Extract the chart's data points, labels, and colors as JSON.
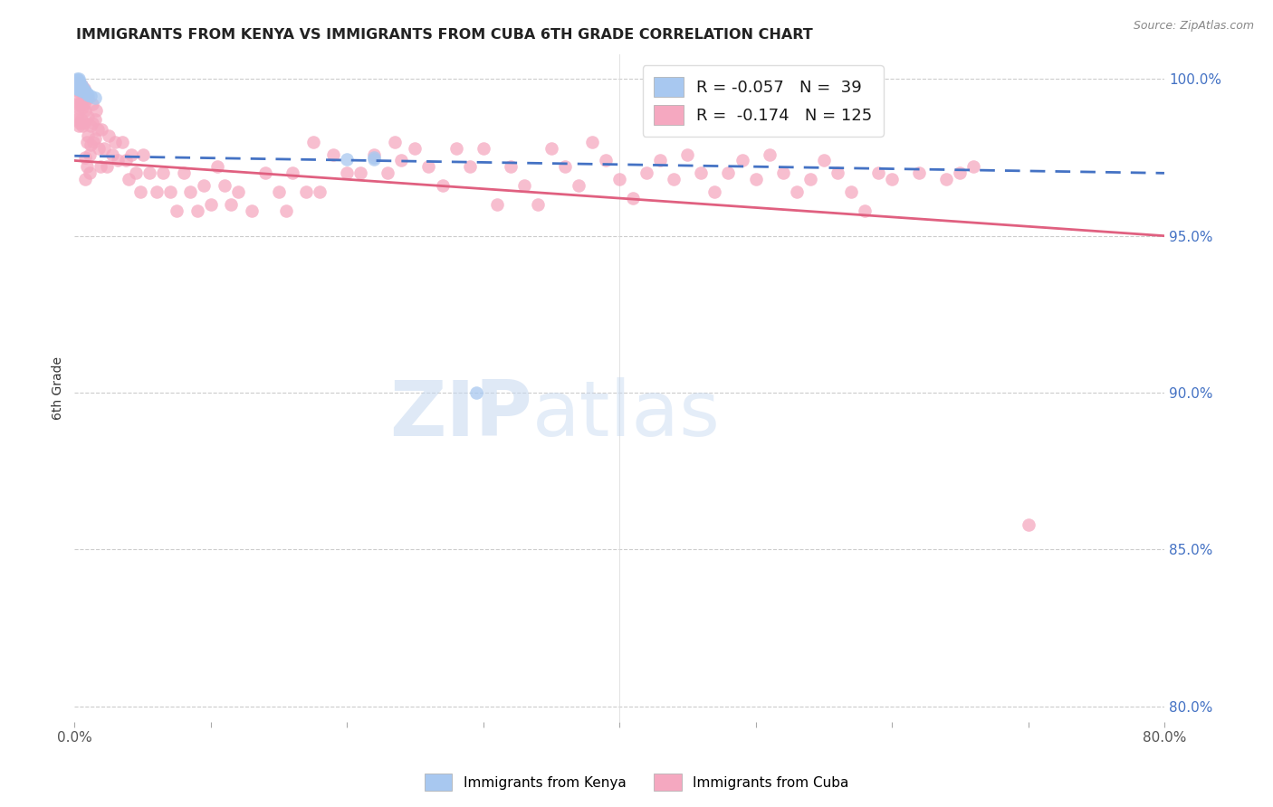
{
  "title": "IMMIGRANTS FROM KENYA VS IMMIGRANTS FROM CUBA 6TH GRADE CORRELATION CHART",
  "source": "Source: ZipAtlas.com",
  "ylabel": "6th Grade",
  "xlim": [
    0.0,
    0.8
  ],
  "ylim": [
    0.795,
    1.008
  ],
  "xticks": [
    0.0,
    0.1,
    0.2,
    0.3,
    0.4,
    0.5,
    0.6,
    0.7,
    0.8
  ],
  "xticklabels": [
    "0.0%",
    "",
    "",
    "",
    "",
    "",
    "",
    "",
    "80.0%"
  ],
  "yticks": [
    0.8,
    0.85,
    0.9,
    0.95,
    1.0
  ],
  "yticklabels": [
    "80.0%",
    "85.0%",
    "90.0%",
    "95.0%",
    "100.0%"
  ],
  "kenya_R": -0.057,
  "kenya_N": 39,
  "cuba_R": -0.174,
  "cuba_N": 125,
  "kenya_color": "#a8c8f0",
  "cuba_color": "#f5a8c0",
  "kenya_trend_color": "#4472c4",
  "cuba_trend_color": "#e06080",
  "watermark_zip": "ZIP",
  "watermark_atlas": "atlas",
  "kenya_x": [
    0.001,
    0.001,
    0.001,
    0.002,
    0.002,
    0.002,
    0.002,
    0.002,
    0.002,
    0.002,
    0.003,
    0.003,
    0.003,
    0.003,
    0.003,
    0.003,
    0.003,
    0.003,
    0.004,
    0.004,
    0.004,
    0.004,
    0.004,
    0.005,
    0.005,
    0.005,
    0.006,
    0.006,
    0.007,
    0.007,
    0.008,
    0.009,
    0.01,
    0.012,
    0.015,
    0.2,
    0.22,
    0.22,
    0.295
  ],
  "kenya_y": [
    0.9995,
    0.999,
    0.9985,
    1.0,
    0.9995,
    0.999,
    0.9985,
    0.998,
    0.9975,
    0.997,
    1.0,
    0.9995,
    0.999,
    0.9985,
    0.998,
    0.9975,
    0.997,
    0.9965,
    0.9985,
    0.998,
    0.9975,
    0.997,
    0.9965,
    0.998,
    0.9975,
    0.997,
    0.9965,
    0.996,
    0.9965,
    0.996,
    0.996,
    0.9955,
    0.995,
    0.9945,
    0.994,
    0.9745,
    0.975,
    0.9745,
    0.9
  ],
  "cuba_x": [
    0.001,
    0.001,
    0.002,
    0.002,
    0.002,
    0.003,
    0.003,
    0.003,
    0.004,
    0.004,
    0.004,
    0.005,
    0.005,
    0.005,
    0.006,
    0.006,
    0.006,
    0.007,
    0.007,
    0.007,
    0.008,
    0.008,
    0.008,
    0.009,
    0.009,
    0.01,
    0.01,
    0.01,
    0.011,
    0.011,
    0.012,
    0.012,
    0.013,
    0.013,
    0.014,
    0.015,
    0.015,
    0.016,
    0.017,
    0.018,
    0.019,
    0.02,
    0.022,
    0.024,
    0.025,
    0.028,
    0.03,
    0.032,
    0.035,
    0.038,
    0.04,
    0.042,
    0.045,
    0.048,
    0.05,
    0.055,
    0.06,
    0.065,
    0.07,
    0.075,
    0.08,
    0.085,
    0.09,
    0.095,
    0.1,
    0.105,
    0.11,
    0.115,
    0.12,
    0.13,
    0.14,
    0.15,
    0.155,
    0.16,
    0.17,
    0.175,
    0.18,
    0.19,
    0.2,
    0.21,
    0.22,
    0.23,
    0.235,
    0.24,
    0.25,
    0.26,
    0.27,
    0.28,
    0.29,
    0.3,
    0.31,
    0.32,
    0.33,
    0.34,
    0.35,
    0.36,
    0.37,
    0.38,
    0.39,
    0.4,
    0.41,
    0.42,
    0.43,
    0.44,
    0.45,
    0.46,
    0.47,
    0.48,
    0.49,
    0.5,
    0.51,
    0.52,
    0.53,
    0.54,
    0.55,
    0.56,
    0.57,
    0.58,
    0.59,
    0.6,
    0.62,
    0.64,
    0.65,
    0.66,
    0.7
  ],
  "cuba_y": [
    0.992,
    0.987,
    0.999,
    0.994,
    0.988,
    0.996,
    0.991,
    0.985,
    0.997,
    0.992,
    0.986,
    0.998,
    0.993,
    0.987,
    0.996,
    0.991,
    0.985,
    0.997,
    0.992,
    0.986,
    0.975,
    0.968,
    0.99,
    0.98,
    0.972,
    0.994,
    0.988,
    0.982,
    0.976,
    0.97,
    0.985,
    0.979,
    0.992,
    0.986,
    0.98,
    0.987,
    0.981,
    0.99,
    0.984,
    0.978,
    0.972,
    0.984,
    0.978,
    0.972,
    0.982,
    0.976,
    0.98,
    0.974,
    0.98,
    0.974,
    0.968,
    0.976,
    0.97,
    0.964,
    0.976,
    0.97,
    0.964,
    0.97,
    0.964,
    0.958,
    0.97,
    0.964,
    0.958,
    0.966,
    0.96,
    0.972,
    0.966,
    0.96,
    0.964,
    0.958,
    0.97,
    0.964,
    0.958,
    0.97,
    0.964,
    0.98,
    0.964,
    0.976,
    0.97,
    0.97,
    0.976,
    0.97,
    0.98,
    0.974,
    0.978,
    0.972,
    0.966,
    0.978,
    0.972,
    0.978,
    0.96,
    0.972,
    0.966,
    0.96,
    0.978,
    0.972,
    0.966,
    0.98,
    0.974,
    0.968,
    0.962,
    0.97,
    0.974,
    0.968,
    0.976,
    0.97,
    0.964,
    0.97,
    0.974,
    0.968,
    0.976,
    0.97,
    0.964,
    0.968,
    0.974,
    0.97,
    0.964,
    0.958,
    0.97,
    0.968,
    0.97,
    0.968,
    0.97,
    0.972,
    0.858
  ]
}
